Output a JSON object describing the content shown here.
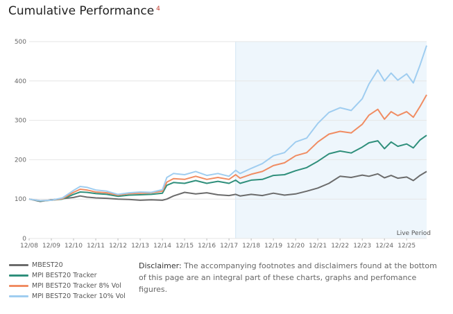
{
  "title": "Cumulative Performance",
  "footnote_mark": "4",
  "disclaimer": {
    "label": "Disclaimer:",
    "text": "The accompanying footnotes and disclaimers found at the bottom of this page are an integral part of these charts, graphs and perfomance figures."
  },
  "chart_data": {
    "type": "line",
    "ylim": [
      0,
      500
    ],
    "yticks": [
      0,
      100,
      200,
      300,
      400,
      500
    ],
    "xlim": [
      0,
      17.9
    ],
    "x_tick_labels": [
      "12/08",
      "12/09",
      "12/10",
      "12/11",
      "12/12",
      "12/13",
      "12/14",
      "12/15",
      "12/16",
      "12/17",
      "12/18",
      "12/19",
      "12/20",
      "12/21",
      "12/22",
      "12/23",
      "12/24",
      "12/25"
    ],
    "grid": "horizontal",
    "live_period": {
      "label": "Live Period",
      "start_x": 9.3,
      "end_x": 17.9,
      "color": "#eef6fc"
    },
    "legend_placement": "bottom-left",
    "x": [
      0,
      0.5,
      1,
      1.5,
      2,
      2.3,
      2.6,
      3,
      3.5,
      4,
      4.5,
      5,
      5.5,
      6,
      6.2,
      6.5,
      7,
      7.5,
      8,
      8.5,
      9,
      9.3,
      9.5,
      10,
      10.5,
      11,
      11.5,
      12,
      12.5,
      13,
      13.5,
      14,
      14.5,
      15,
      15.3,
      15.7,
      16,
      16.3,
      16.6,
      17,
      17.3,
      17.6,
      17.9
    ],
    "series": [
      {
        "name": "MBEST20",
        "color": "#6b6b6b",
        "values": [
          100,
          94,
          98,
          101,
          104,
          108,
          105,
          103,
          102,
          100,
          99,
          97,
          98,
          97,
          100,
          108,
          117,
          113,
          116,
          111,
          109,
          112,
          108,
          112,
          109,
          115,
          110,
          113,
          120,
          128,
          140,
          158,
          155,
          161,
          158,
          164,
          154,
          160,
          153,
          156,
          147,
          160,
          170
        ]
      },
      {
        "name": "MPI BEST20 Tracker",
        "color": "#2f8f7b",
        "values": [
          100,
          95,
          97,
          100,
          112,
          118,
          117,
          114,
          112,
          107,
          110,
          111,
          112,
          115,
          135,
          142,
          140,
          147,
          140,
          145,
          140,
          148,
          140,
          148,
          150,
          160,
          162,
          172,
          180,
          196,
          215,
          222,
          217,
          232,
          243,
          248,
          228,
          245,
          234,
          240,
          230,
          250,
          262
        ]
      },
      {
        "name": "MPI BEST20 Tracker 8% Vol",
        "color": "#f08c62",
        "values": [
          100,
          96,
          97,
          101,
          117,
          125,
          123,
          118,
          116,
          110,
          114,
          115,
          116,
          120,
          143,
          152,
          150,
          158,
          150,
          155,
          150,
          162,
          153,
          163,
          170,
          185,
          192,
          210,
          218,
          245,
          265,
          272,
          268,
          290,
          313,
          328,
          303,
          322,
          312,
          322,
          308,
          335,
          365
        ]
      },
      {
        "name": "MPI BEST20 Tracker 10% Vol",
        "color": "#9fcdf0",
        "values": [
          100,
          96,
          97,
          103,
          122,
          132,
          130,
          123,
          120,
          112,
          116,
          118,
          117,
          124,
          155,
          165,
          162,
          170,
          160,
          165,
          158,
          173,
          165,
          178,
          190,
          210,
          218,
          245,
          255,
          292,
          320,
          332,
          325,
          355,
          392,
          428,
          400,
          420,
          402,
          418,
          395,
          440,
          490
        ]
      }
    ]
  }
}
